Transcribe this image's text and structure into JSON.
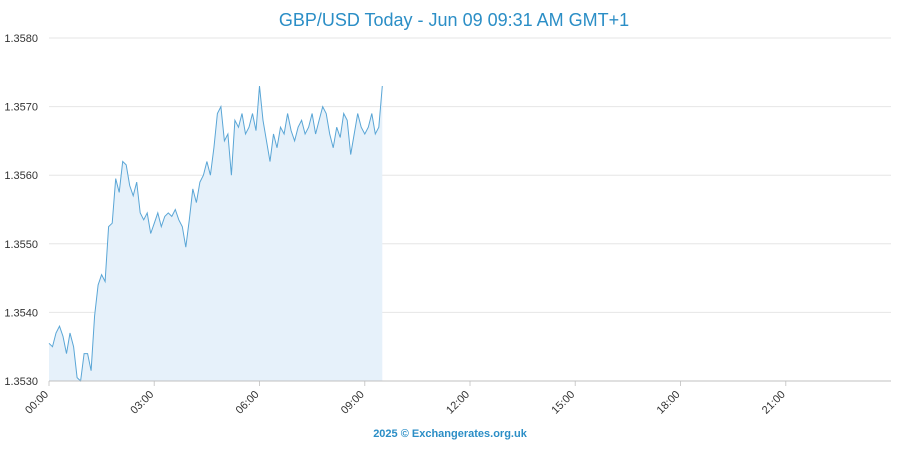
{
  "chart_data": {
    "type": "area",
    "title": "GBP/USD Today - Jun 09 09:31 AM GMT+1",
    "xlabel": "",
    "ylabel": "",
    "credit": "2025 © Exchangerates.org.uk",
    "x_ticks": [
      "00:00",
      "03:00",
      "06:00",
      "09:00",
      "12:00",
      "15:00",
      "18:00",
      "21:00"
    ],
    "y_ticks": [
      "1.3530",
      "1.3540",
      "1.3550",
      "1.3560",
      "1.3570",
      "1.3580"
    ],
    "xlim_hours": [
      0,
      24
    ],
    "ylim": [
      1.353,
      1.358
    ],
    "grid": true,
    "colors": {
      "line": "#5aa6d6",
      "fill": "#e6f1fa",
      "title": "#2b8ec6",
      "grid": "#e6e6e6"
    },
    "series": [
      {
        "x": [
          0.0,
          0.1,
          0.2,
          0.3,
          0.4,
          0.5,
          0.6,
          0.7,
          0.8,
          0.9,
          1.0,
          1.1,
          1.2,
          1.3,
          1.4,
          1.5,
          1.6,
          1.7,
          1.8,
          1.9,
          2.0,
          2.1,
          2.2,
          2.3,
          2.4,
          2.5,
          2.6,
          2.7,
          2.8,
          2.9,
          3.0,
          3.1,
          3.2,
          3.3,
          3.4,
          3.5,
          3.6,
          3.7,
          3.8,
          3.9,
          4.0,
          4.1,
          4.2,
          4.3,
          4.4,
          4.5,
          4.6,
          4.7,
          4.8,
          4.9,
          5.0,
          5.1,
          5.2,
          5.3,
          5.4,
          5.5,
          5.6,
          5.7,
          5.8,
          5.9,
          6.0,
          6.1,
          6.2,
          6.3,
          6.4,
          6.5,
          6.6,
          6.7,
          6.8,
          6.9,
          7.0,
          7.1,
          7.2,
          7.3,
          7.4,
          7.5,
          7.6,
          7.7,
          7.8,
          7.9,
          8.0,
          8.1,
          8.2,
          8.3,
          8.4,
          8.5,
          8.6,
          8.7,
          8.8,
          8.9,
          9.0,
          9.1,
          9.2,
          9.3,
          9.4,
          9.5
        ],
        "values": [
          1.35355,
          1.3535,
          1.3537,
          1.3538,
          1.35365,
          1.3534,
          1.3537,
          1.3535,
          1.35305,
          1.353,
          1.3534,
          1.3534,
          1.35315,
          1.35395,
          1.3544,
          1.35455,
          1.35445,
          1.35525,
          1.3553,
          1.35595,
          1.35575,
          1.3562,
          1.35615,
          1.35585,
          1.3557,
          1.3559,
          1.35545,
          1.35535,
          1.35545,
          1.35515,
          1.3553,
          1.35545,
          1.35525,
          1.3554,
          1.35545,
          1.3554,
          1.3555,
          1.35535,
          1.35525,
          1.35495,
          1.35535,
          1.3558,
          1.3556,
          1.3559,
          1.356,
          1.3562,
          1.356,
          1.3564,
          1.3569,
          1.357,
          1.3565,
          1.3566,
          1.356,
          1.3568,
          1.3567,
          1.3569,
          1.3566,
          1.3567,
          1.3569,
          1.35665,
          1.3573,
          1.3568,
          1.3565,
          1.3562,
          1.3566,
          1.3564,
          1.3567,
          1.3566,
          1.3569,
          1.35665,
          1.3565,
          1.3567,
          1.3568,
          1.3566,
          1.3567,
          1.3569,
          1.3566,
          1.3568,
          1.357,
          1.3569,
          1.3566,
          1.3564,
          1.3567,
          1.35655,
          1.3569,
          1.3568,
          1.3563,
          1.3566,
          1.3569,
          1.3567,
          1.3566,
          1.3567,
          1.3569,
          1.3566,
          1.3567,
          1.3573
        ]
      }
    ]
  }
}
